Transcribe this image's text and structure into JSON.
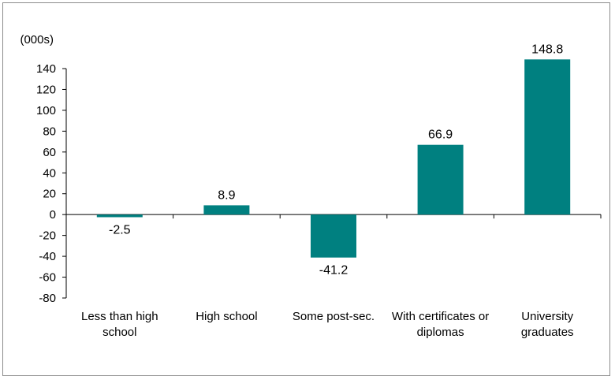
{
  "chart_data": {
    "type": "bar",
    "ylabel": "(000s)",
    "categories": [
      [
        "Less than high",
        "school"
      ],
      [
        "High school"
      ],
      [
        "Some post-sec."
      ],
      [
        "With certificates or",
        "diplomas"
      ],
      [
        "University",
        "graduates"
      ]
    ],
    "values": [
      -2.5,
      8.9,
      -41.2,
      66.9,
      148.8
    ],
    "data_labels": [
      "-2.5",
      "8.9",
      "-41.2",
      "66.9",
      "148.8"
    ],
    "ylim": [
      -80,
      140
    ],
    "yticks": [
      -80,
      -60,
      -40,
      -20,
      0,
      20,
      40,
      60,
      80,
      100,
      120,
      140
    ],
    "grid": false,
    "bar_color": "#008080"
  }
}
